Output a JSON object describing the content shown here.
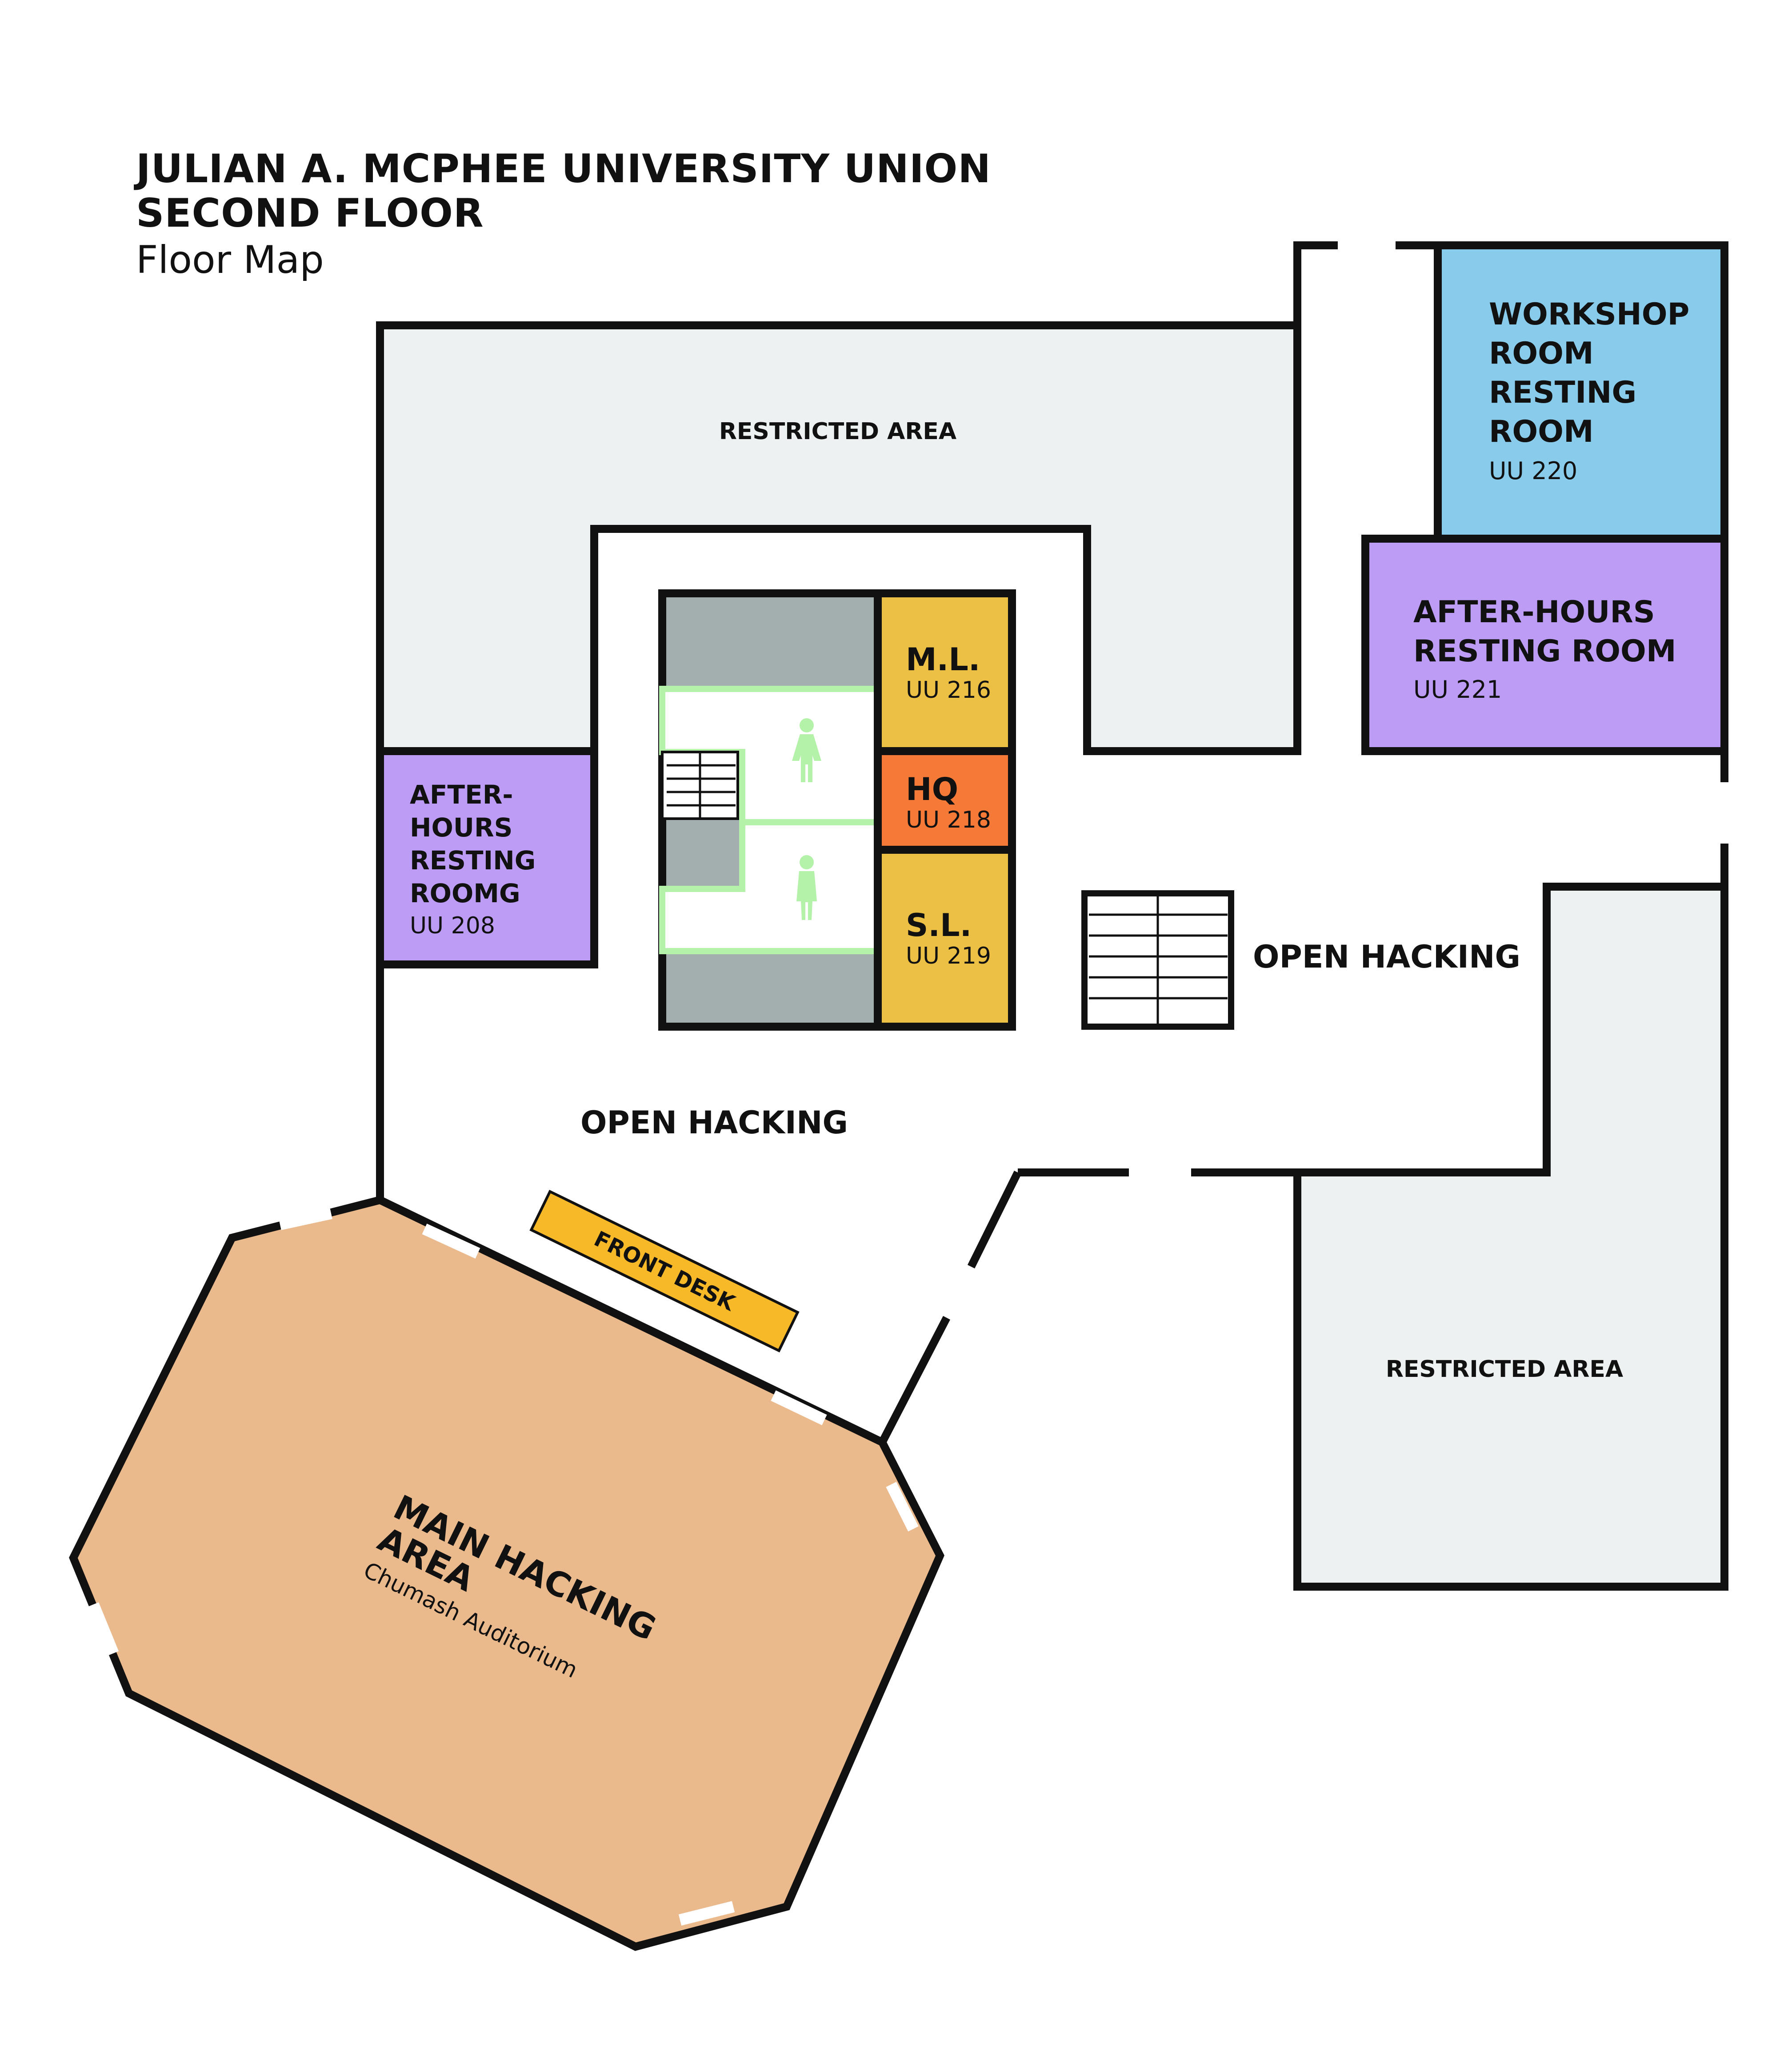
{
  "title": {
    "line1": "JULIAN A. MCPHEE UNIVERSITY UNION",
    "line2": "SECOND FLOOR",
    "line3": "Floor Map"
  },
  "rooms": {
    "restricted_top": {
      "label": "RESTRICTED AREA"
    },
    "restricted_bottom": {
      "label": "RESTRICTED AREA"
    },
    "workshop": {
      "line1": "WORKSHOP",
      "line2": "ROOM",
      "line3": "RESTING",
      "line4": "ROOM",
      "number": "UU 220"
    },
    "afterhours_221": {
      "line1": "AFTER-HOURS",
      "line2": "RESTING ROOM",
      "number": "UU 221"
    },
    "afterhours_208": {
      "line1": "AFTER-",
      "line2": "HOURS",
      "line3": "RESTING",
      "line4": "ROOMG",
      "number": "UU 208"
    },
    "ml": {
      "label": "M.L.",
      "number": "UU 216"
    },
    "hq": {
      "label": "HQ",
      "number": "UU 218"
    },
    "sl": {
      "label": "S.L.",
      "number": "UU 219"
    },
    "main_hacking": {
      "line1": "MAIN HACKING",
      "line2": "AREA",
      "subtitle": "Chumash Auditorium"
    }
  },
  "labels": {
    "open_hacking_right": "OPEN HACKING",
    "open_hacking_left": "OPEN HACKING",
    "front_desk": "FRONT DESK"
  },
  "icons": {
    "restroom_women": "female-restroom-icon",
    "restroom_men": "male-restroom-icon",
    "stairs": "stairs-icon",
    "elevator": "elevator-icon"
  },
  "colors": {
    "restricted": "#EDF1F1",
    "workshop": "#89CBEA",
    "afterhours": "#BD9CF6",
    "mentor_rooms": "#EBC044",
    "hq": "#F57937",
    "elevator_core": "#A3AEAE",
    "restroom_outline": "#B5F2A9",
    "front_desk": "#F8B928",
    "main_hacking": "#EAB98C",
    "wall": "#111111"
  }
}
